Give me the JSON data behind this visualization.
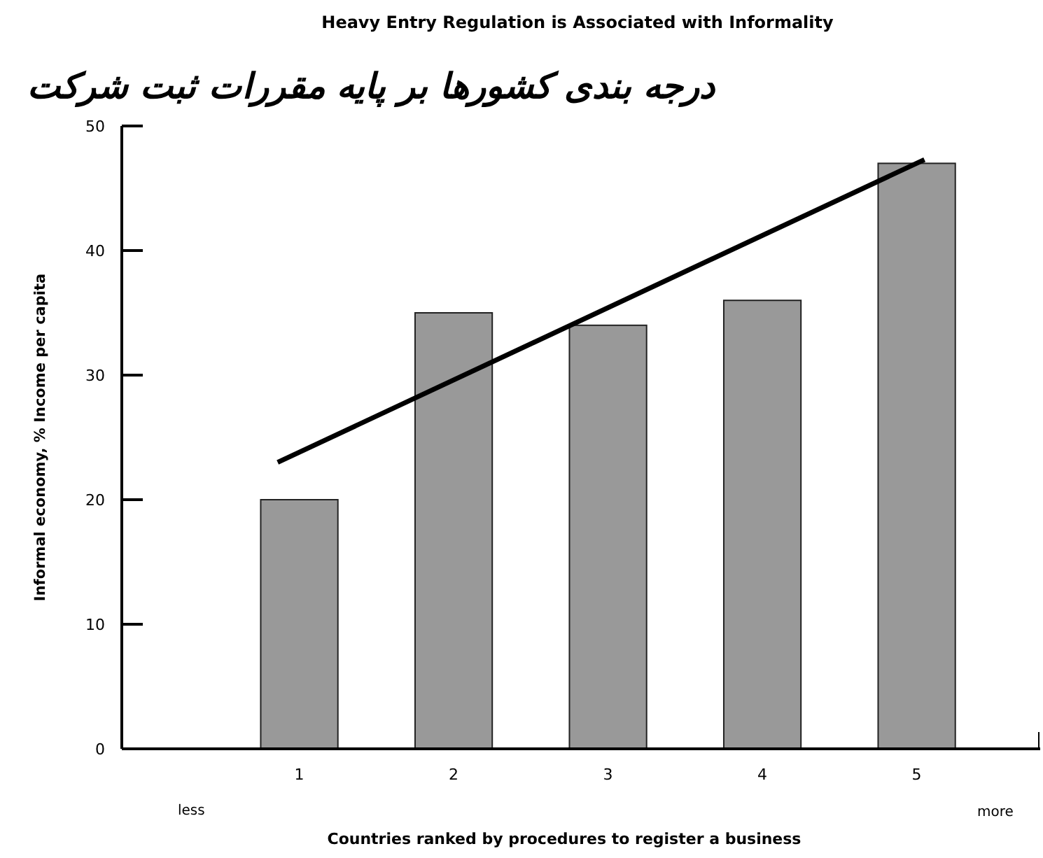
{
  "chart_data": {
    "type": "bar",
    "title": "Heavy Entry Regulation is Associated with Informality",
    "subtitle": "درجه بندی کشورها بر پایه مقررات ثبت شرکت",
    "xlabel": "Countries ranked by procedures to register a business",
    "ylabel": "Informal economy, % Income per capita",
    "x": [
      1,
      2,
      3,
      4,
      5
    ],
    "series": [
      {
        "color": "#999999",
        "values": [
          20,
          35,
          34,
          36,
          47
        ]
      },
      {
        "type": "line",
        "color": "#000000",
        "x": [
          0.86,
          5.05
        ],
        "values": [
          23,
          47.3
        ]
      }
    ],
    "xlim": [
      -0.15,
      5.8
    ],
    "xticks": [
      1,
      2,
      3,
      4,
      5
    ],
    "ylim": [
      0,
      50
    ],
    "yticks": [
      0,
      10,
      20,
      30,
      40,
      50
    ],
    "annotations": [
      "less",
      "more"
    ]
  }
}
